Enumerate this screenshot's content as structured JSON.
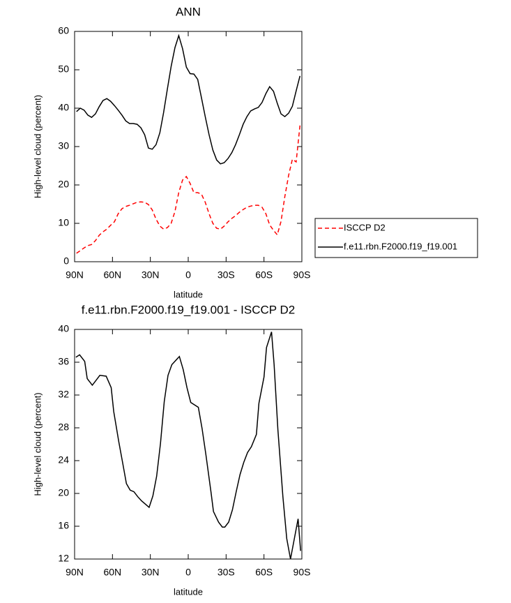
{
  "chart_data": [
    {
      "type": "line",
      "title": "ANN",
      "xlabel": "latitude",
      "ylabel": "High-level cloud (percent)",
      "x": [
        88.5,
        85.5,
        82.5,
        79.5,
        76.5,
        73.5,
        70.5,
        67.5,
        64.5,
        61.5,
        58.5,
        55.5,
        52.5,
        49.5,
        46.5,
        43.5,
        40.5,
        37.5,
        34.5,
        31.5,
        28.5,
        25.5,
        22.5,
        19.5,
        16.5,
        13.5,
        10.5,
        7.5,
        4.5,
        1.5,
        -1.5,
        -4.5,
        -7.5,
        -10.5,
        -13.5,
        -16.5,
        -19.5,
        -22.5,
        -25.5,
        -28.5,
        -31.5,
        -34.5,
        -37.5,
        -40.5,
        -43.5,
        -46.5,
        -49.5,
        -52.5,
        -55.5,
        -58.5,
        -61.5,
        -64.5,
        -67.5,
        -70.5,
        -73.5,
        -76.5,
        -79.5,
        -82.5,
        -85.5,
        -88.5
      ],
      "series": [
        {
          "name": "ISCCP D2",
          "color": "#ff0000",
          "dash": "dashed",
          "values": [
            2.2,
            2.9,
            3.6,
            4.2,
            4.5,
            5.5,
            6.9,
            7.8,
            8.5,
            9.5,
            10.4,
            12.5,
            13.8,
            14.4,
            14.7,
            15.1,
            15.5,
            15.6,
            15.5,
            14.9,
            13.5,
            11.1,
            9.3,
            8.5,
            8.9,
            10,
            13.1,
            18,
            21.3,
            22.2,
            20.4,
            18,
            18,
            17.6,
            15.5,
            12.5,
            10,
            8.7,
            8.5,
            9.3,
            10.4,
            11.3,
            12,
            12.9,
            13.6,
            14.2,
            14.5,
            14.7,
            14.7,
            14.2,
            12.5,
            9.6,
            8.2,
            7,
            10.5,
            17,
            22.5,
            26.7,
            26,
            35.5
          ]
        },
        {
          "name": "f.e11.rbn.F2000.f19_f19.001",
          "color": "#000000",
          "dash": "solid",
          "values": [
            39.1,
            40,
            39.5,
            38.2,
            37.6,
            38.5,
            40.4,
            42,
            42.5,
            41.8,
            40.7,
            39.5,
            38.2,
            36.7,
            36,
            36,
            35.8,
            34.9,
            33.1,
            29.6,
            29.3,
            30.5,
            33.6,
            38.9,
            45,
            50.9,
            55.8,
            58.9,
            55.5,
            50.7,
            49,
            48.9,
            47.5,
            42.7,
            37.8,
            33.1,
            29.1,
            26.5,
            25.5,
            25.8,
            26.9,
            28.4,
            30.5,
            33.1,
            35.8,
            37.8,
            39.3,
            39.8,
            40.2,
            41.5,
            43.8,
            45.6,
            44.4,
            41.3,
            38.5,
            37.8,
            38.7,
            40.5,
            44.5,
            48.4
          ]
        }
      ],
      "xlim": [
        90,
        -90
      ],
      "xticks": [
        {
          "value": 90,
          "label": "90N"
        },
        {
          "value": 60,
          "label": "60N"
        },
        {
          "value": 30,
          "label": "30N"
        },
        0,
        {
          "value": -30,
          "label": "30S"
        },
        {
          "value": -60,
          "label": "60S"
        },
        {
          "value": -90,
          "label": "90S"
        }
      ],
      "ylim": [
        0,
        60
      ],
      "yticks": [
        0,
        10,
        20,
        30,
        40,
        50,
        60
      ],
      "legend": "right"
    },
    {
      "type": "line",
      "title": "f.e11.rbn.F2000.f19_f19.001 - ISCCP D2",
      "xlabel": "latitude",
      "ylabel": "High-level cloud (percent)",
      "x": [
        89,
        86,
        82,
        80,
        76,
        73,
        70,
        65,
        61,
        59,
        55,
        52,
        49,
        46,
        43,
        40,
        37,
        31,
        28,
        25,
        22,
        19,
        16,
        13,
        7,
        4,
        1,
        -2,
        -8,
        -11,
        -14,
        -18,
        -20,
        -24,
        -27,
        -29,
        -32,
        -35,
        -38,
        -41,
        -44,
        -47,
        -50,
        -54,
        -56,
        -60,
        -62,
        -66,
        -68,
        -71,
        -75,
        -78,
        -81,
        -87,
        -89
      ],
      "series": [
        {
          "color": "#000000",
          "values": [
            36.6,
            36.9,
            36.1,
            34,
            33.2,
            33.8,
            34.4,
            34.3,
            32.9,
            30,
            26.3,
            23.8,
            21.2,
            20.4,
            20.2,
            19.6,
            19.1,
            18.3,
            19.7,
            22.1,
            26.1,
            31.2,
            34.4,
            35.7,
            36.7,
            35.1,
            32.9,
            31.1,
            30.5,
            27.9,
            24.7,
            20.2,
            17.8,
            16.5,
            15.9,
            15.9,
            16.5,
            18,
            20.2,
            22.3,
            23.8,
            25,
            25.7,
            27.2,
            31,
            34.2,
            37.8,
            39.7,
            35.7,
            27.8,
            19.6,
            14.5,
            12,
            16.9,
            13
          ]
        }
      ],
      "xlim": [
        90,
        -90
      ],
      "xticks": [
        {
          "value": 90,
          "label": "90N"
        },
        {
          "value": 60,
          "label": "60N"
        },
        {
          "value": 30,
          "label": "30N"
        },
        0,
        {
          "value": -30,
          "label": "30S"
        },
        {
          "value": -60,
          "label": "60S"
        },
        {
          "value": -90,
          "label": "90S"
        }
      ],
      "ylim": [
        12,
        40
      ],
      "yticks": [
        12,
        16,
        20,
        24,
        28,
        32,
        36,
        40
      ]
    }
  ]
}
